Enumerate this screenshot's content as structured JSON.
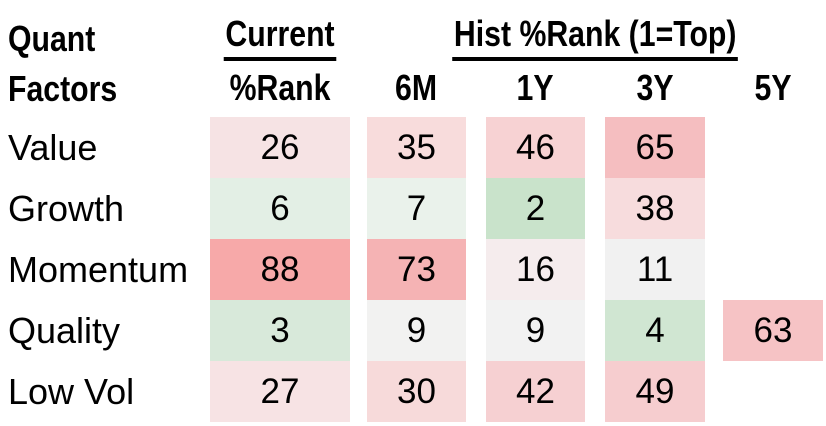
{
  "title": {
    "line1": "Quant",
    "line2": "Factors"
  },
  "header": {
    "current_group": "Current",
    "hist_group": "Hist %Rank (1=Top)",
    "columns": [
      "%Rank",
      "6M",
      "1Y",
      "3Y",
      "5Y"
    ]
  },
  "table": {
    "rows": [
      {
        "label": "Value",
        "cells": [
          {
            "value": "26",
            "bg": "#f6e3e4"
          },
          {
            "value": "35",
            "bg": "#f8dcdc"
          },
          {
            "value": "46",
            "bg": "#f7d2d3"
          },
          {
            "value": "65",
            "bg": "#f5bec0"
          },
          null
        ]
      },
      {
        "label": "Growth",
        "cells": [
          {
            "value": "6",
            "bg": "#e3efe5"
          },
          {
            "value": "7",
            "bg": "#eaf2eb"
          },
          {
            "value": "2",
            "bg": "#c9e3cb"
          },
          {
            "value": "38",
            "bg": "#f7dcdd"
          },
          null
        ]
      },
      {
        "label": "Momentum",
        "cells": [
          {
            "value": "88",
            "bg": "#f7a9a9"
          },
          {
            "value": "73",
            "bg": "#f5b3b4"
          },
          {
            "value": "16",
            "bg": "#f5eced"
          },
          {
            "value": "11",
            "bg": "#f1f1f1"
          },
          null
        ]
      },
      {
        "label": "Quality",
        "cells": [
          {
            "value": "3",
            "bg": "#d8e9da"
          },
          {
            "value": "9",
            "bg": "#f2f2f1"
          },
          {
            "value": "9",
            "bg": "#f2f2f2"
          },
          {
            "value": "4",
            "bg": "#d0e6d2"
          },
          {
            "value": "63",
            "bg": "#f6c3c5"
          }
        ]
      },
      {
        "label": "Low Vol",
        "cells": [
          {
            "value": "27",
            "bg": "#f7e3e4"
          },
          {
            "value": "30",
            "bg": "#f7dada"
          },
          {
            "value": "42",
            "bg": "#f6d0d2"
          },
          {
            "value": "49",
            "bg": "#f6cdcf"
          },
          null
        ]
      }
    ]
  },
  "chart_data": {
    "type": "heatmap",
    "title": "Quant Factors",
    "scale_note": "1=Top",
    "column_groups": [
      {
        "label": "Current",
        "columns": [
          "%Rank"
        ]
      },
      {
        "label": "Hist %Rank (1=Top)",
        "columns": [
          "6M",
          "1Y",
          "3Y",
          "5Y"
        ]
      }
    ],
    "columns": [
      "%Rank",
      "6M",
      "1Y",
      "3Y",
      "5Y"
    ],
    "rows": [
      "Value",
      "Growth",
      "Momentum",
      "Quality",
      "Low Vol"
    ],
    "values": [
      [
        26,
        35,
        46,
        65,
        null
      ],
      [
        6,
        7,
        2,
        38,
        null
      ],
      [
        88,
        73,
        16,
        11,
        null
      ],
      [
        3,
        9,
        9,
        4,
        63
      ],
      [
        27,
        30,
        42,
        49,
        null
      ]
    ],
    "color_encoding": {
      "low_rank_good": "#c9e3cb",
      "neutral": "#f1f1f1",
      "high_rank_bad": "#f7a9a9"
    }
  }
}
